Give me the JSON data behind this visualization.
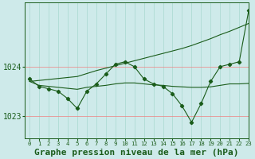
{
  "title": "Graphe pression niveau de la mer (hPa)",
  "bg_color": "#ceeaea",
  "grid_color_v": "#a8d8d0",
  "grid_color_h": "#f08080",
  "line_color": "#1a5c1a",
  "xlim": [
    -0.5,
    23
  ],
  "ylim": [
    1022.55,
    1025.3
  ],
  "yticks": [
    1023,
    1024
  ],
  "xticks": [
    0,
    1,
    2,
    3,
    4,
    5,
    6,
    7,
    8,
    9,
    10,
    11,
    12,
    13,
    14,
    15,
    16,
    17,
    18,
    19,
    20,
    21,
    22,
    23
  ],
  "series_jagged": [
    1023.75,
    1023.6,
    1023.55,
    1023.5,
    1023.35,
    1023.15,
    1023.5,
    1023.65,
    1023.85,
    1024.05,
    1024.1,
    1024.0,
    1023.75,
    1023.65,
    1023.6,
    1023.45,
    1023.2,
    1022.87,
    1023.25,
    1023.7,
    1024.0,
    1024.05,
    1024.1,
    1025.15
  ],
  "series_flat": [
    1023.7,
    1023.62,
    1023.6,
    1023.58,
    1023.56,
    1023.54,
    1023.58,
    1023.6,
    1023.62,
    1023.65,
    1023.67,
    1023.67,
    1023.65,
    1023.63,
    1023.62,
    1023.6,
    1023.59,
    1023.58,
    1023.58,
    1023.59,
    1023.62,
    1023.65,
    1023.65,
    1023.66
  ],
  "series_diagonal": [
    1023.7,
    1023.72,
    1023.74,
    1023.76,
    1023.78,
    1023.8,
    1023.86,
    1023.92,
    1023.97,
    1024.02,
    1024.07,
    1024.12,
    1024.17,
    1024.22,
    1024.27,
    1024.32,
    1024.37,
    1024.43,
    1024.5,
    1024.57,
    1024.65,
    1024.72,
    1024.8,
    1024.88
  ],
  "font_size_title": 8,
  "font_size_ticks_x": 5.2,
  "font_size_ticks_y": 7.0
}
